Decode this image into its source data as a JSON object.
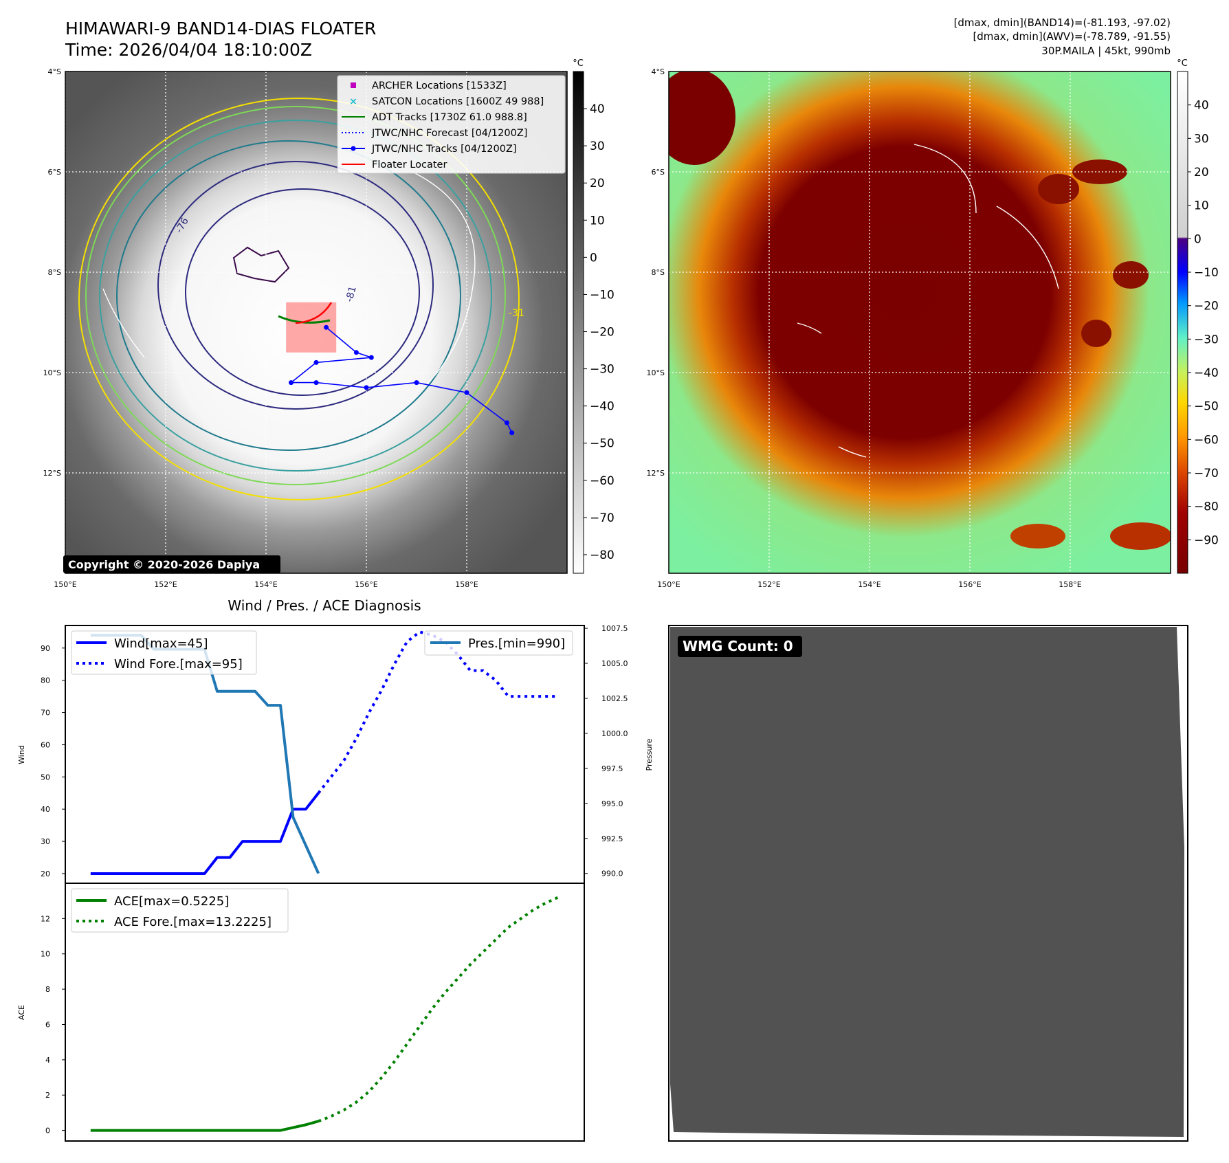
{
  "header": {
    "title_line1": "HIMAWARI-9 BAND14-DIAS FLOATER",
    "title_line2": "Time: 2026/04/04 18:10:00Z",
    "info_line1": "[dmax, dmin](BAND14)=(-81.193, -97.02)",
    "info_line2": "[dmax, dmin](AWV)=(-78.789, -91.55)",
    "info_line3": "30P.MAILA | 45kt, 990mb"
  },
  "copyright": "Copyright © 2020-2026 Dapiya",
  "wmg_count": "WMG Count: 0",
  "map": {
    "lat_labels": [
      "4°S",
      "6°S",
      "8°S",
      "10°S",
      "12°S"
    ],
    "lat_values": [
      -4,
      -6,
      -8,
      -10,
      -12
    ],
    "lon_labels": [
      "150°E",
      "152°E",
      "154°E",
      "156°E",
      "158°E"
    ],
    "lon_values": [
      150,
      152,
      154,
      156,
      158
    ],
    "lon_range": [
      150,
      160
    ],
    "lat_range": [
      -4,
      -14
    ],
    "legend": [
      {
        "label": "ARCHER Locations [1533Z]",
        "color": "#bf00bf",
        "marker": "square"
      },
      {
        "label": "SATCON Locations [1600Z 49 988]",
        "color": "#17becf",
        "marker": "x"
      },
      {
        "label": "ADT Tracks [1730Z 61.0 988.8]",
        "color": "#008000",
        "marker": "line"
      },
      {
        "label": "JTWC/NHC Forecast [04/1200Z]",
        "color": "#0000ff",
        "marker": "dotted"
      },
      {
        "label": "JTWC/NHC Tracks [04/1200Z]",
        "color": "#0000ff",
        "marker": "line-dot"
      },
      {
        "label": "Floater Locater",
        "color": "#ff0000",
        "marker": "line"
      }
    ],
    "contour_labels": [
      "-76",
      "-81",
      "-31"
    ],
    "jtwc_track": [
      [
        158.9,
        -11.2
      ],
      [
        158.8,
        -11.0
      ],
      [
        158.0,
        -10.4
      ],
      [
        157.0,
        -10.2
      ],
      [
        156.0,
        -10.3
      ],
      [
        155.0,
        -10.2
      ],
      [
        154.5,
        -10.2
      ],
      [
        155.0,
        -9.8
      ],
      [
        156.1,
        -9.7
      ],
      [
        155.8,
        -9.6
      ],
      [
        155.2,
        -9.1
      ]
    ],
    "floater_box": {
      "lon": [
        154.4,
        155.4
      ],
      "lat": [
        -8.6,
        -9.6
      ]
    }
  },
  "colorbar_left": {
    "unit": "°C",
    "ticks": [
      "40",
      "30",
      "20",
      "10",
      "0",
      "−10",
      "−20",
      "−30",
      "−40",
      "−50",
      "−60",
      "−70",
      "−80"
    ],
    "tick_values": [
      40,
      30,
      20,
      10,
      0,
      -10,
      -20,
      -30,
      -40,
      -50,
      -60,
      -70,
      -80
    ],
    "range": [
      -85,
      50
    ]
  },
  "colorbar_right": {
    "unit": "°C",
    "ticks": [
      "40",
      "30",
      "20",
      "10",
      "0",
      "−10",
      "−20",
      "−30",
      "−40",
      "−50",
      "−60",
      "−70",
      "−80",
      "−90"
    ],
    "tick_values": [
      40,
      30,
      20,
      10,
      0,
      -10,
      -20,
      -30,
      -40,
      -50,
      -60,
      -70,
      -80,
      -90
    ],
    "range": [
      -100,
      50
    ]
  },
  "chart_data": [
    {
      "type": "line",
      "title": "Wind / Pres. / ACE Diagnosis",
      "ylabel": "Wind",
      "ylabel_right": "Pressure",
      "ylim": [
        17,
        97
      ],
      "ylim_right": [
        989.3,
        1007.7
      ],
      "yticks": [
        20,
        30,
        40,
        50,
        60,
        70,
        80,
        90
      ],
      "yticks_right": [
        "990.0",
        "992.5",
        "995.0",
        "997.5",
        "1000.0",
        "1002.5",
        "1005.0",
        "1007.5"
      ],
      "yticks_right_values": [
        990.0,
        992.5,
        995.0,
        997.5,
        1000.0,
        1002.5,
        1005.0,
        1007.5
      ],
      "x_range": [
        -2,
        39
      ],
      "legend_left": [
        "Wind[max=45]",
        "Wind Fore.[max=95]"
      ],
      "legend_right": [
        "Pres.[min=990]"
      ],
      "series": [
        {
          "name": "Wind[max=45]",
          "style": "solid",
          "color": "#0000ff",
          "axis": "left",
          "points": [
            [
              0,
              20
            ],
            [
              9,
              20
            ],
            [
              10,
              25
            ],
            [
              11,
              25
            ],
            [
              12,
              30
            ],
            [
              15,
              30
            ],
            [
              16,
              40
            ],
            [
              17,
              40
            ],
            [
              18,
              45
            ]
          ]
        },
        {
          "name": "Wind Fore.[max=95]",
          "style": "dotted",
          "color": "#0000ff",
          "axis": "left",
          "points": [
            [
              18,
              45
            ],
            [
              19,
              50
            ],
            [
              20,
              55
            ],
            [
              21,
              62
            ],
            [
              22,
              70
            ],
            [
              23,
              77
            ],
            [
              24,
              85
            ],
            [
              25,
              92
            ],
            [
              26,
              95
            ],
            [
              27,
              94
            ],
            [
              28,
              92
            ],
            [
              29,
              88
            ],
            [
              30,
              83
            ],
            [
              31,
              83
            ],
            [
              32,
              80
            ],
            [
              33,
              75
            ],
            [
              34,
              75
            ],
            [
              35,
              75
            ],
            [
              36,
              75
            ],
            [
              37,
              75
            ]
          ]
        },
        {
          "name": "Pres.[min=990]",
          "style": "solid",
          "color": "#1f77b4",
          "axis": "right",
          "points": [
            [
              0,
              1007.0
            ],
            [
              4,
              1007.0
            ],
            [
              5,
              1006.0
            ],
            [
              6,
              1006.0
            ],
            [
              9,
              1006.0
            ],
            [
              10,
              1003.0
            ],
            [
              13,
              1003.0
            ],
            [
              14,
              1002.0
            ],
            [
              15,
              1002.0
            ],
            [
              16,
              994.0
            ],
            [
              18,
              990.0
            ]
          ]
        }
      ]
    },
    {
      "type": "line",
      "ylabel": "ACE",
      "ylim": [
        -0.6,
        14.0
      ],
      "yticks": [
        0,
        2,
        4,
        6,
        8,
        10,
        12
      ],
      "x_range": [
        -2,
        39
      ],
      "legend": [
        "ACE[max=0.5225]",
        "ACE Fore.[max=13.2225]"
      ],
      "series": [
        {
          "name": "ACE[max=0.5225]",
          "style": "solid",
          "color": "#008000",
          "points": [
            [
              0,
              0
            ],
            [
              15,
              0
            ],
            [
              16,
              0.16
            ],
            [
              17,
              0.32
            ],
            [
              18,
              0.5225
            ]
          ]
        },
        {
          "name": "ACE Fore.[max=13.2225]",
          "style": "dotted",
          "color": "#008000",
          "points": [
            [
              18,
              0.5225
            ],
            [
              19,
              0.8
            ],
            [
              20,
              1.15
            ],
            [
              21,
              1.6
            ],
            [
              22,
              2.2
            ],
            [
              23,
              3.0
            ],
            [
              24,
              3.9
            ],
            [
              25,
              4.9
            ],
            [
              26,
              5.9
            ],
            [
              27,
              6.9
            ],
            [
              28,
              7.8
            ],
            [
              29,
              8.6
            ],
            [
              30,
              9.4
            ],
            [
              31,
              10.1
            ],
            [
              32,
              10.8
            ],
            [
              33,
              11.5
            ],
            [
              34,
              12.0
            ],
            [
              35,
              12.5
            ],
            [
              36,
              12.9
            ],
            [
              37,
              13.2225
            ]
          ]
        }
      ]
    }
  ]
}
